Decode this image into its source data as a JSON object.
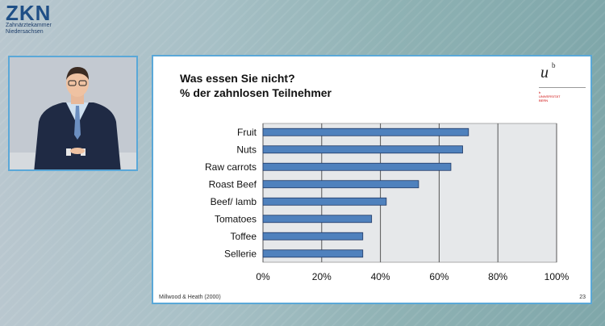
{
  "logo": {
    "mark": "ZKN",
    "line1": "Zahnärztekammer",
    "line2": "Niedersachsen"
  },
  "slide": {
    "title_line1": "Was essen Sie nicht?",
    "title_line2": "% der zahnlosen Teilnehmer",
    "uni_logo": {
      "mark": "u",
      "superscript": "b",
      "line1": "b",
      "line2": "UNIVERSITÄT",
      "line3": "BERN"
    },
    "source": "Millwood & Heath (2000)",
    "page_number": "23"
  },
  "chart_data": {
    "type": "bar",
    "orientation": "horizontal",
    "categories": [
      "Fruit",
      "Nuts",
      "Raw carrots",
      "Roast Beef",
      "Beef/ lamb",
      "Tomatoes",
      "Toffee",
      "Sellerie"
    ],
    "values": [
      70,
      68,
      64,
      53,
      42,
      37,
      34,
      34
    ],
    "xlim": [
      0,
      100
    ],
    "ticks": [
      "0%",
      "20%",
      "40%",
      "60%",
      "80%",
      "100%"
    ],
    "tick_values": [
      0,
      20,
      40,
      60,
      80,
      100
    ],
    "grid": true,
    "colors": {
      "bar": "#4f81bd",
      "bar_edge": "#1f3864",
      "plot_bg": "#e6e8ea",
      "grid": "#555555"
    }
  }
}
